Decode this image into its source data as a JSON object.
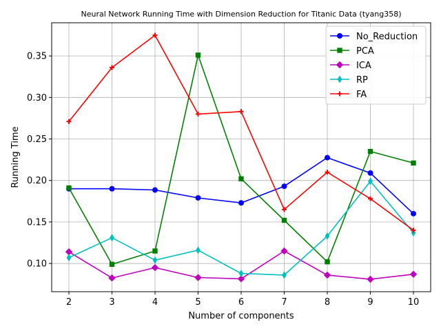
{
  "chart_data": {
    "type": "line",
    "title": "Neural Network Running Time with Dimension Reduction for Titanic Data (tyang358)",
    "xlabel": "Number of components",
    "ylabel": "Running Time",
    "x": [
      2,
      3,
      4,
      5,
      6,
      7,
      8,
      9,
      10
    ],
    "xlim": [
      1.6,
      10.4
    ],
    "ylim": [
      0.066,
      0.39
    ],
    "x_ticks": [
      "2",
      "3",
      "4",
      "5",
      "6",
      "7",
      "8",
      "9",
      "10"
    ],
    "y_ticks": [
      "0.10",
      "0.15",
      "0.20",
      "0.25",
      "0.30",
      "0.35"
    ],
    "grid": true,
    "legend_position": "top-right",
    "series": [
      {
        "name": "No_Reduction",
        "color": "#0000ff",
        "marker": "circle",
        "values": [
          0.19,
          0.19,
          0.1885,
          0.179,
          0.173,
          0.193,
          0.2275,
          0.209,
          0.16
        ]
      },
      {
        "name": "PCA",
        "color": "#008000",
        "marker": "square",
        "values": [
          0.191,
          0.099,
          0.115,
          0.351,
          0.202,
          0.152,
          0.102,
          0.235,
          0.221
        ]
      },
      {
        "name": "ICA",
        "color": "#bf00bf",
        "marker": "diamond",
        "values": [
          0.114,
          0.0825,
          0.095,
          0.083,
          0.0815,
          0.115,
          0.086,
          0.081,
          0.087
        ]
      },
      {
        "name": "RP",
        "color": "#00bfbf",
        "marker": "thin_diamond",
        "values": [
          0.107,
          0.131,
          0.104,
          0.116,
          0.088,
          0.086,
          0.133,
          0.199,
          0.137
        ]
      },
      {
        "name": "FA",
        "color": "#ff0000",
        "marker": "plus",
        "values": [
          0.271,
          0.336,
          0.375,
          0.28,
          0.283,
          0.165,
          0.21,
          0.178,
          0.14
        ]
      }
    ]
  }
}
